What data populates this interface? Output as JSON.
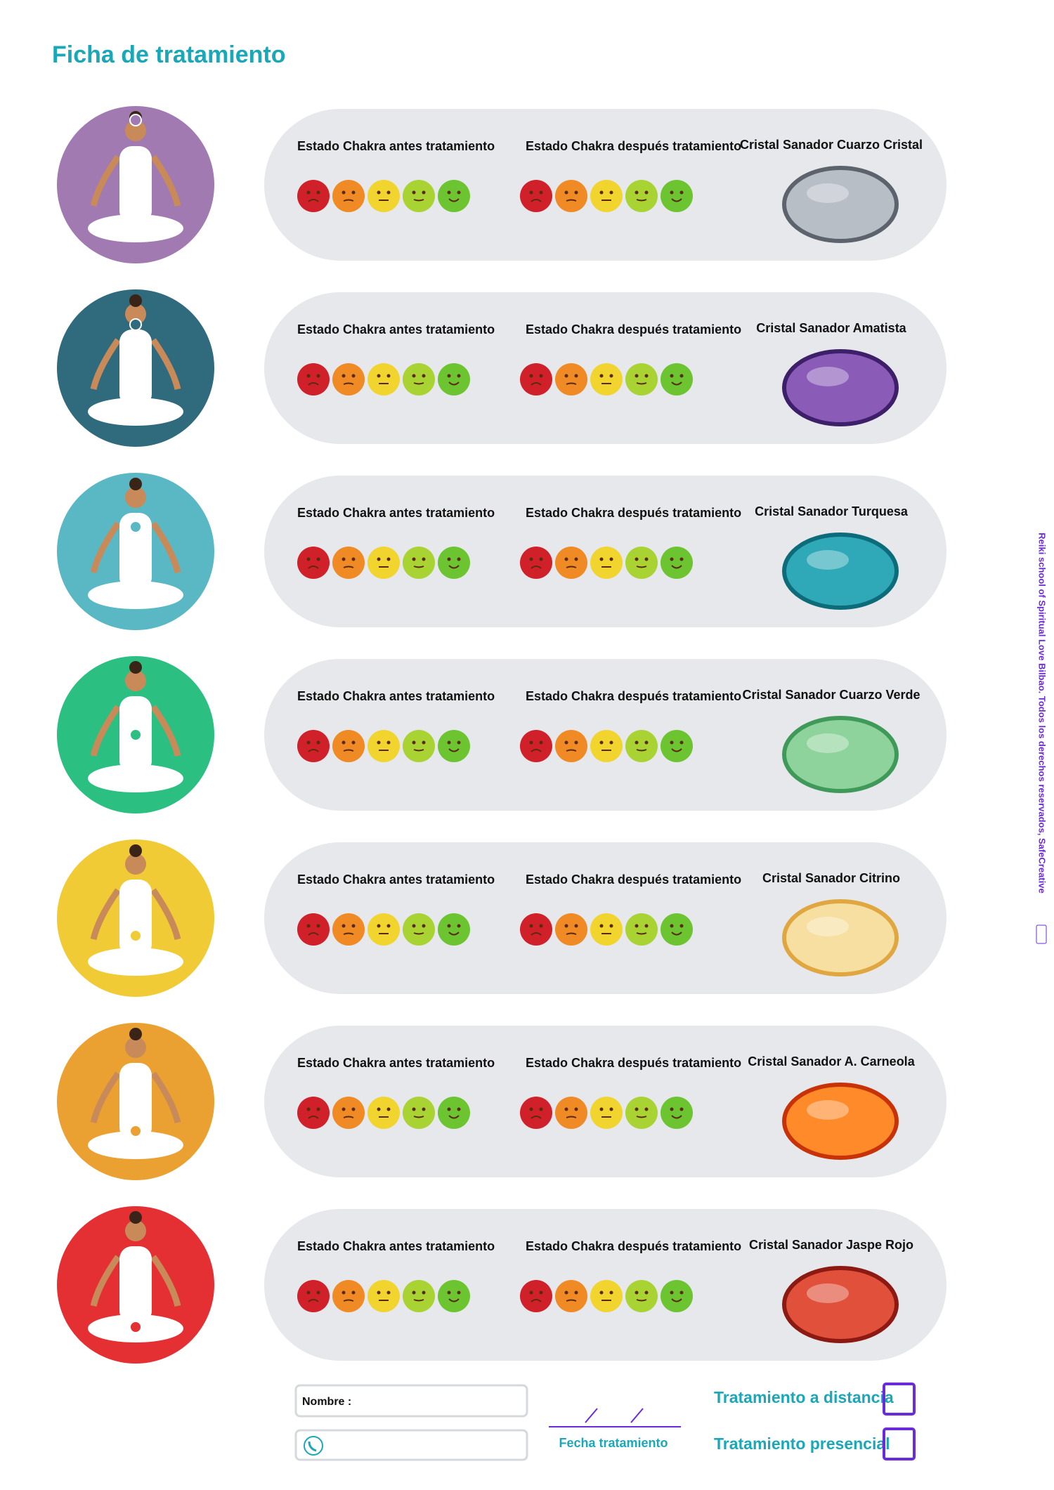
{
  "header": {
    "title": "Ficha de tratamiento"
  },
  "rows": [
    {
      "before": "Estado Chakra antes tratamiento",
      "after": "Estado Chakra después tratamiento",
      "crystal": "Cristal Sanador Cuarzo Cristal"
    },
    {
      "before": "Estado Chakra antes tratamiento",
      "after": "Estado Chakra después tratamiento",
      "crystal": "Cristal Sanador Amatista"
    },
    {
      "before": "Estado Chakra antes tratamiento",
      "after": "Estado Chakra después tratamiento",
      "crystal": "Cristal Sanador Turquesa"
    },
    {
      "before": "Estado Chakra antes tratamiento",
      "after": "Estado Chakra después tratamiento",
      "crystal": "Cristal Sanador Cuarzo Verde"
    },
    {
      "before": "Estado Chakra antes tratamiento",
      "after": "Estado Chakra después tratamiento",
      "crystal": "Cristal Sanador Citrino"
    },
    {
      "before": "Estado Chakra antes tratamiento",
      "after": "Estado Chakra después tratamiento",
      "crystal": "Cristal Sanador A. Carneola"
    },
    {
      "before": "Estado Chakra antes tratamiento",
      "after": "Estado Chakra después tratamiento",
      "crystal": "Cristal Sanador Jaspe Rojo"
    }
  ],
  "form": {
    "name_label": "Nombre :",
    "date_label": "Fecha tratamiento",
    "options": [
      "Tratamiento a distancia",
      "Tratamiento presencial"
    ]
  },
  "copyright": {
    "text": "Reiki school of Spiritual Love Bilbao. Todos los derechos reservados, SafeCreative"
  }
}
